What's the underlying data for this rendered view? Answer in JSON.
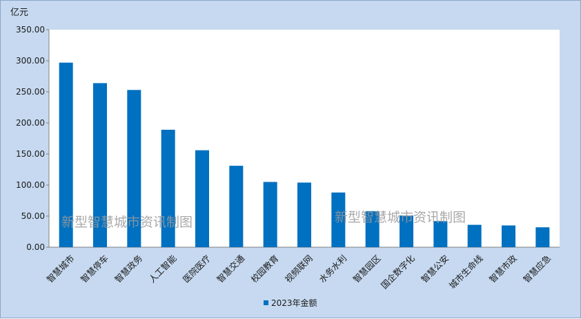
{
  "chart_data": {
    "type": "bar",
    "y_unit": "亿元",
    "categories": [
      "智慧城市",
      "智慧停车",
      "智慧政务",
      "人工智能",
      "医院医疗",
      "智慧交通",
      "校园教育",
      "视频联网",
      "水务水利",
      "智慧园区",
      "国企数字化",
      "智慧公安",
      "城市生命线",
      "智慧市政",
      "智慧应急"
    ],
    "series": [
      {
        "name": "2023年金额",
        "color": "#0070c0",
        "values": [
          297,
          264,
          253,
          189,
          156,
          131,
          105,
          104,
          88,
          58,
          51,
          42,
          36,
          35,
          32
        ]
      }
    ],
    "ylim": [
      0,
      350
    ],
    "yticks": [
      "0.00",
      "50.00",
      "100.00",
      "150.00",
      "200.00",
      "250.00",
      "300.00",
      "350.00"
    ],
    "grid": false,
    "legend_position": "bottom"
  },
  "watermarks": [
    "新型智慧城市资讯制图",
    "新型智慧城市资讯制图"
  ]
}
